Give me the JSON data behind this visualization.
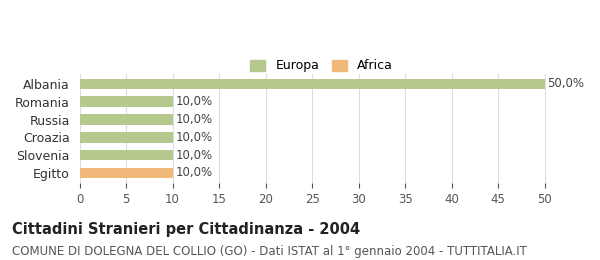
{
  "categories": [
    "Albania",
    "Romania",
    "Russia",
    "Croazia",
    "Slovenia",
    "Egitto"
  ],
  "values": [
    50.0,
    10.0,
    10.0,
    10.0,
    10.0,
    10.0
  ],
  "bar_colors": [
    "#b5c98e",
    "#b5c98e",
    "#b5c98e",
    "#b5c98e",
    "#b5c98e",
    "#f0b97a"
  ],
  "labels": [
    "50,0%",
    "10,0%",
    "10,0%",
    "10,0%",
    "10,0%",
    "10,0%"
  ],
  "legend_europa_color": "#b5c98e",
  "legend_africa_color": "#f0b97a",
  "legend_europa_label": "Europa",
  "legend_africa_label": "Africa",
  "xlim": [
    0,
    52
  ],
  "xticks": [
    0,
    5,
    10,
    15,
    20,
    25,
    30,
    35,
    40,
    45,
    50
  ],
  "title": "Cittadini Stranieri per Cittadinanza - 2004",
  "subtitle": "COMUNE DI DOLEGNA DEL COLLIO (GO) - Dati ISTAT al 1° gennaio 2004 - TUTTITALIA.IT",
  "background_color": "#ffffff",
  "grid_color": "#dddddd",
  "label_fontsize": 8.5,
  "title_fontsize": 10.5,
  "subtitle_fontsize": 8.5
}
